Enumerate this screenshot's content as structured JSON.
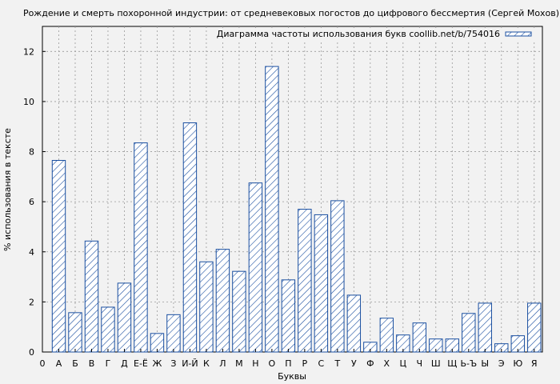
{
  "chart_data": {
    "type": "bar",
    "title": "Рождение и смерть похоронной индустрии: от средневековых погостов до цифрового бессмертия (Сергей Мохов)",
    "legend": "Диаграмма частоты использования букв coollib.net/b/754016",
    "xlabel": "Буквы",
    "ylabel": "% использования в тексте",
    "x_tick_zero": "0",
    "ylim": [
      0,
      13
    ],
    "y_ticks": [
      0,
      2,
      4,
      6,
      8,
      10,
      12
    ],
    "grid": true,
    "legend_position": "top-right",
    "bar_color": "#1a4fa0",
    "categories": [
      "А",
      "Б",
      "В",
      "Г",
      "Д",
      "Е-Ё",
      "Ж",
      "З",
      "И-Й",
      "К",
      "Л",
      "М",
      "Н",
      "О",
      "П",
      "Р",
      "С",
      "Т",
      "У",
      "Ф",
      "Х",
      "Ц",
      "Ч",
      "Ш",
      "Щ",
      "Ь-Ъ",
      "Ы",
      "Э",
      "Ю",
      "Я"
    ],
    "values": [
      7.65,
      1.57,
      4.43,
      1.79,
      2.75,
      8.35,
      0.74,
      1.49,
      9.15,
      3.6,
      4.1,
      3.22,
      6.75,
      11.4,
      2.88,
      5.7,
      5.48,
      6.04,
      2.27,
      0.39,
      1.35,
      0.68,
      1.16,
      0.52,
      0.52,
      1.54,
      1.95,
      0.33,
      0.65,
      1.95
    ]
  }
}
